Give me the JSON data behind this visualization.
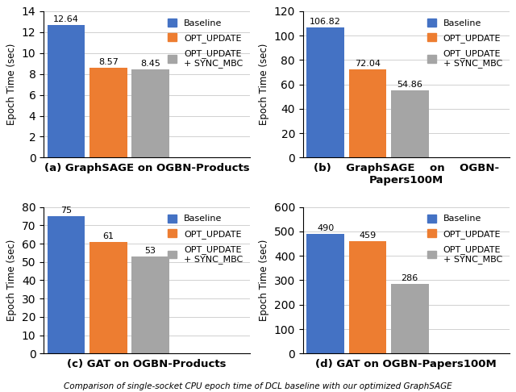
{
  "subplots": [
    {
      "title": "(a) GraphSAGE on OGBN-Products",
      "title_align": "left",
      "values": [
        12.64,
        8.57,
        8.45
      ],
      "value_labels": [
        "12.64",
        "8.57",
        "8.45"
      ],
      "ylim": [
        0,
        14
      ],
      "yticks": [
        0,
        2,
        4,
        6,
        8,
        10,
        12,
        14
      ],
      "ylabel": "Epoch Time (sec)"
    },
    {
      "title": "(b)    GraphSAGE    on    OGBN-\nPapers100M",
      "title_align": "left",
      "values": [
        106.82,
        72.04,
        54.86
      ],
      "value_labels": [
        "106.82",
        "72.04",
        "54.86"
      ],
      "ylim": [
        0,
        120
      ],
      "yticks": [
        0,
        20,
        40,
        60,
        80,
        100,
        120
      ],
      "ylabel": "Epoch Time (sec)"
    },
    {
      "title": "(c) GAT on OGBN-Products",
      "title_align": "left",
      "values": [
        75,
        61,
        53
      ],
      "value_labels": [
        "75",
        "61",
        "53"
      ],
      "ylim": [
        0,
        80
      ],
      "yticks": [
        0,
        10,
        20,
        30,
        40,
        50,
        60,
        70,
        80
      ],
      "ylabel": "Epoch Time (sec)"
    },
    {
      "title": "(d) GAT on OGBN-Papers100M",
      "title_align": "center",
      "values": [
        490,
        459,
        286
      ],
      "value_labels": [
        "490",
        "459",
        "286"
      ],
      "ylim": [
        0,
        600
      ],
      "yticks": [
        0,
        100,
        200,
        300,
        400,
        500,
        600
      ],
      "ylabel": "Epoch Time (sec)"
    }
  ],
  "bar_colors": [
    "#4472C4",
    "#ED7D31",
    "#A5A5A5"
  ],
  "legend_labels": [
    "Baseline",
    "OPT_UPDATE",
    "OPT_UPDATE\n+ SYNC_MBC"
  ],
  "bar_width": 0.42,
  "x_positions": [
    0.25,
    0.72,
    1.19
  ],
  "xlim": [
    0,
    2.3
  ],
  "background_color": "#ffffff",
  "grid_color": "#d0d0d0",
  "ylabel_fontsize": 8.5,
  "value_fontsize": 8,
  "title_fontsize": 9.5,
  "legend_fontsize": 8,
  "caption": "Comparison of single-socket CPU epoch time of DCL baseline with our optimized GraphSAGE"
}
